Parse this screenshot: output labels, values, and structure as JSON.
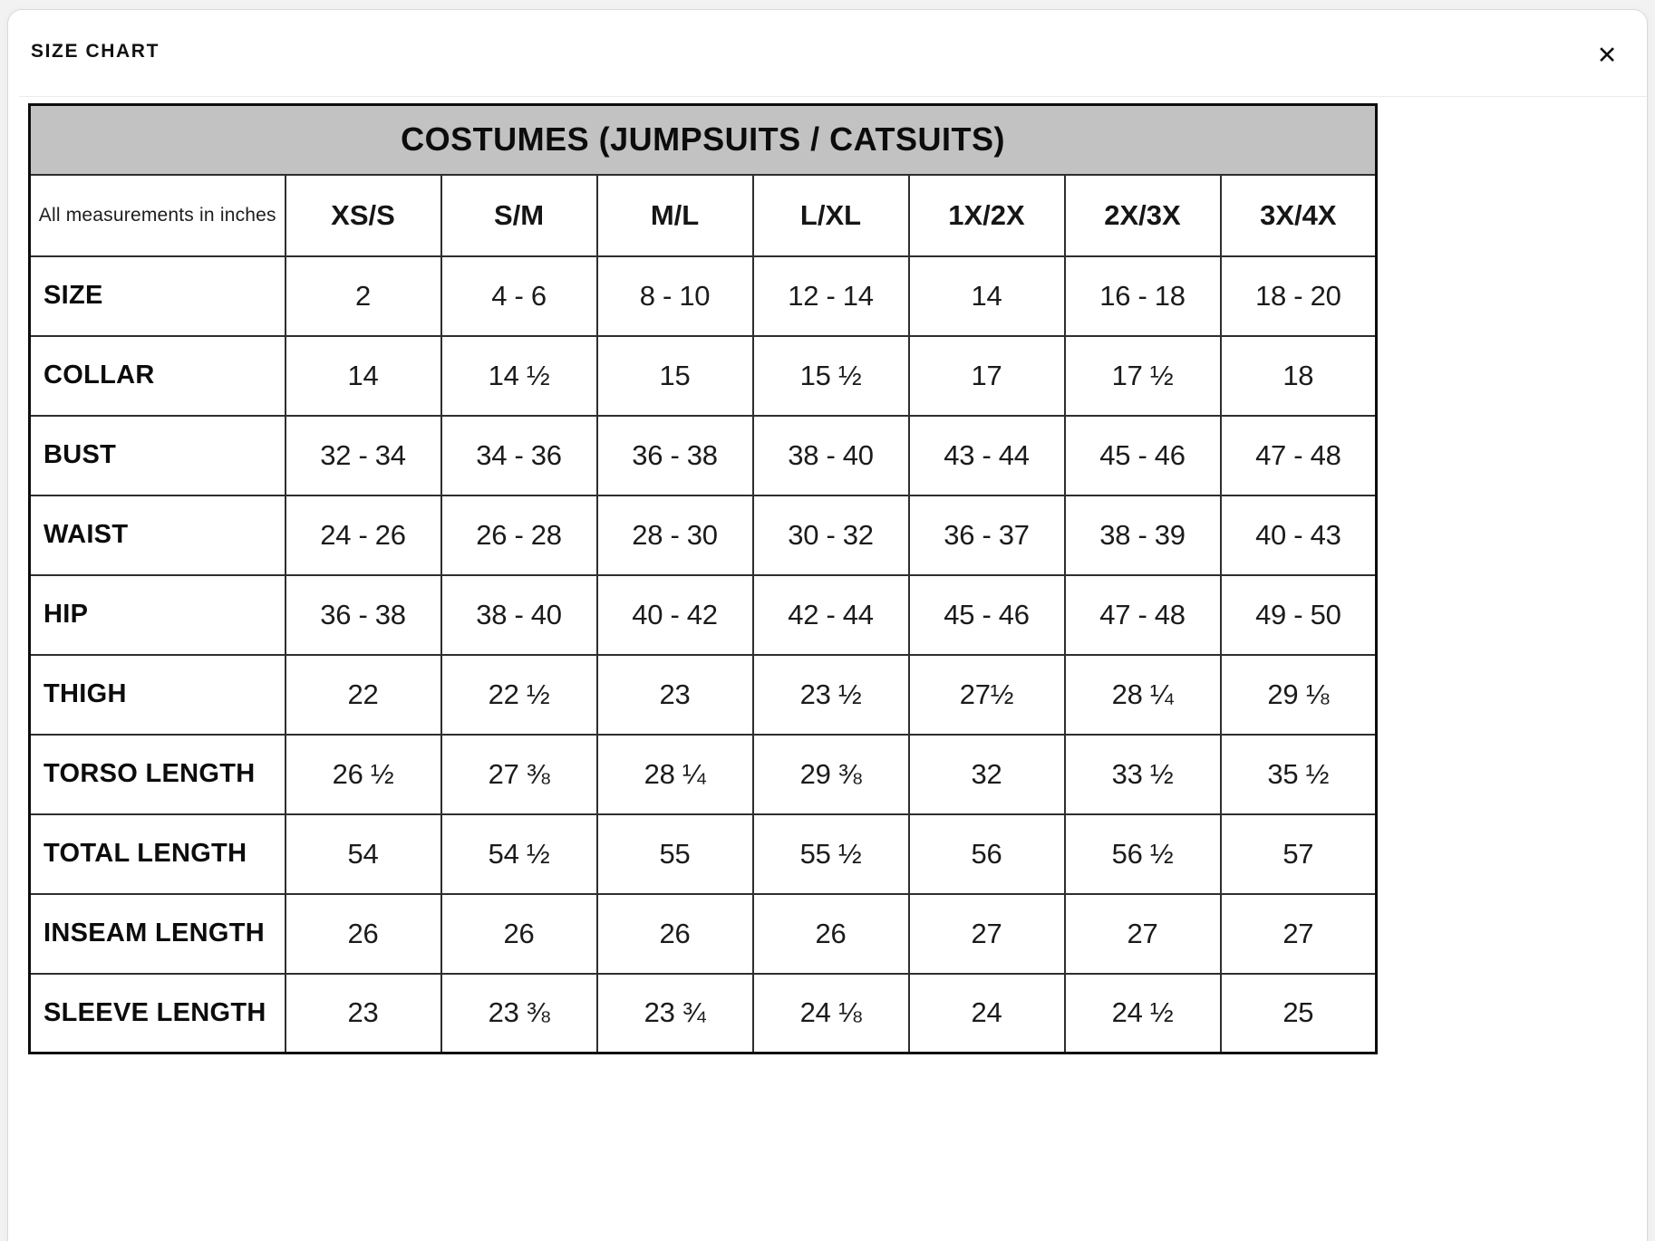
{
  "modal": {
    "title": "SIZE CHART",
    "close_icon": "✕"
  },
  "table": {
    "title": "COSTUMES (JUMPSUITS / CATSUITS)",
    "corner_label": "All measurements in inches",
    "columns": [
      "XS/S",
      "S/M",
      "M/L",
      "L/XL",
      "1X/2X",
      "2X/3X",
      "3X/4X"
    ],
    "rows": [
      {
        "label": "SIZE",
        "values": [
          "2",
          "4 - 6",
          "8 - 10",
          "12 - 14",
          "14",
          "16 - 18",
          "18 - 20"
        ]
      },
      {
        "label": "COLLAR",
        "values": [
          "14",
          "14 ½",
          "15",
          "15 ½",
          "17",
          "17 ½",
          "18"
        ]
      },
      {
        "label": "BUST",
        "values": [
          "32 - 34",
          "34 - 36",
          "36 - 38",
          "38 - 40",
          "43 - 44",
          "45 - 46",
          "47 - 48"
        ]
      },
      {
        "label": "WAIST",
        "values": [
          "24 - 26",
          "26 - 28",
          "28 - 30",
          "30 - 32",
          "36 - 37",
          "38 - 39",
          "40 - 43"
        ]
      },
      {
        "label": "HIP",
        "values": [
          "36 - 38",
          "38 - 40",
          "40 - 42",
          "42 - 44",
          "45 - 46",
          "47 - 48",
          "49 - 50"
        ]
      },
      {
        "label": "THIGH",
        "values": [
          "22",
          "22 ½",
          "23",
          "23 ½",
          "27½",
          "28 ¼",
          "29 ⅛"
        ]
      },
      {
        "label": "TORSO LENGTH",
        "values": [
          "26 ½",
          "27 ⅜",
          "28 ¼",
          "29 ⅜",
          "32",
          "33 ½",
          "35 ½"
        ]
      },
      {
        "label": "TOTAL LENGTH",
        "values": [
          "54",
          "54 ½",
          "55",
          "55 ½",
          "56",
          "56 ½",
          "57"
        ]
      },
      {
        "label": "INSEAM LENGTH",
        "values": [
          "26",
          "26",
          "26",
          "26",
          "27",
          "27",
          "27"
        ]
      },
      {
        "label": "SLEEVE LENGTH",
        "values": [
          "23",
          "23 ⅜",
          "23 ¾",
          "24 ⅛",
          "24",
          "24 ½",
          "25"
        ]
      }
    ]
  }
}
